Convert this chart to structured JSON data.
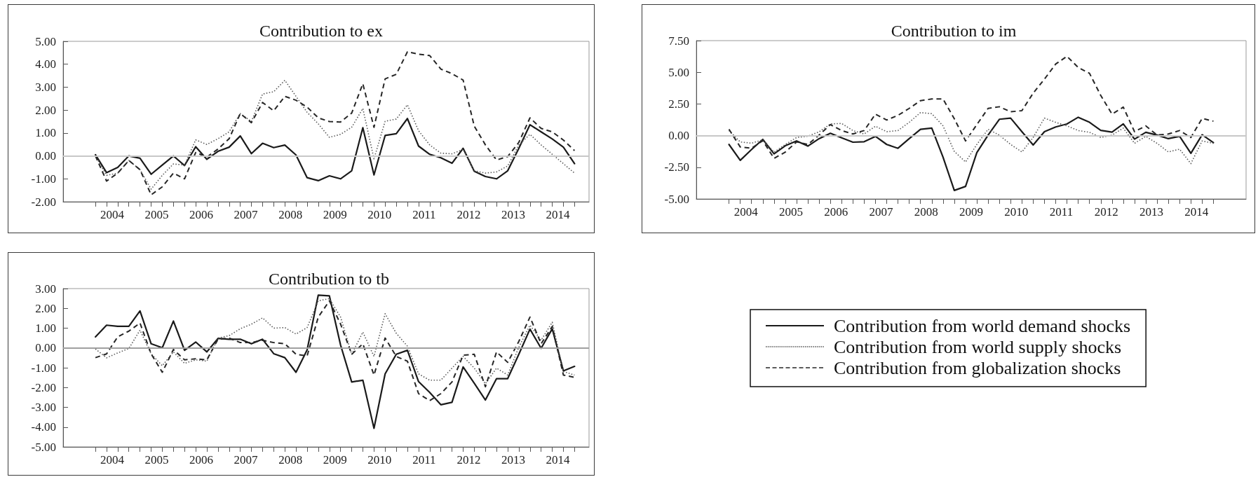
{
  "chart_data": [
    {
      "type": "line",
      "title": "Contribution to ex",
      "x": [
        2003.625,
        2003.875,
        2004.125,
        2004.375,
        2004.625,
        2004.875,
        2005.125,
        2005.375,
        2005.625,
        2005.875,
        2006.125,
        2006.375,
        2006.625,
        2006.875,
        2007.125,
        2007.375,
        2007.625,
        2007.875,
        2008.125,
        2008.375,
        2008.625,
        2008.875,
        2009.125,
        2009.375,
        2009.625,
        2009.875,
        2010.125,
        2010.375,
        2010.625,
        2010.875,
        2011.125,
        2011.375,
        2011.625,
        2011.875,
        2012.125,
        2012.375,
        2012.625,
        2012.875,
        2013.125,
        2013.375,
        2013.625,
        2013.875,
        2014.125,
        2014.375
      ],
      "xlim": [
        2002.9,
        2014.7
      ],
      "xticks": [
        {
          "value": 2003.625,
          "label": null
        },
        {
          "value": 2003.875,
          "label": null
        },
        2004,
        {
          "value": 2004.125,
          "label": null
        },
        {
          "value": 2004.375,
          "label": null
        },
        {
          "value": 2004.625,
          "label": null
        },
        {
          "value": 2004.875,
          "label": null
        },
        2005,
        {
          "value": 2005.125,
          "label": null
        },
        {
          "value": 2005.375,
          "label": null
        },
        {
          "value": 2005.625,
          "label": null
        },
        {
          "value": 2005.875,
          "label": null
        },
        2006,
        {
          "value": 2006.125,
          "label": null
        },
        {
          "value": 2006.375,
          "label": null
        },
        {
          "value": 2006.625,
          "label": null
        },
        {
          "value": 2006.875,
          "label": null
        },
        2007,
        {
          "value": 2007.125,
          "label": null
        },
        {
          "value": 2007.375,
          "label": null
        },
        {
          "value": 2007.625,
          "label": null
        },
        {
          "value": 2007.875,
          "label": null
        },
        2008,
        {
          "value": 2008.125,
          "label": null
        },
        {
          "value": 2008.375,
          "label": null
        },
        {
          "value": 2008.625,
          "label": null
        },
        {
          "value": 2008.875,
          "label": null
        },
        2009,
        {
          "value": 2009.125,
          "label": null
        },
        {
          "value": 2009.375,
          "label": null
        },
        {
          "value": 2009.625,
          "label": null
        },
        {
          "value": 2009.875,
          "label": null
        },
        2010,
        {
          "value": 2010.125,
          "label": null
        },
        {
          "value": 2010.375,
          "label": null
        },
        {
          "value": 2010.625,
          "label": null
        },
        {
          "value": 2010.875,
          "label": null
        },
        2011,
        {
          "value": 2011.125,
          "label": null
        },
        {
          "value": 2011.375,
          "label": null
        },
        {
          "value": 2011.625,
          "label": null
        },
        {
          "value": 2011.875,
          "label": null
        },
        2012,
        {
          "value": 2012.125,
          "label": null
        },
        {
          "value": 2012.375,
          "label": null
        },
        {
          "value": 2012.625,
          "label": null
        },
        {
          "value": 2012.875,
          "label": null
        },
        2013,
        {
          "value": 2013.125,
          "label": null
        },
        {
          "value": 2013.375,
          "label": null
        },
        {
          "value": 2013.625,
          "label": null
        },
        {
          "value": 2013.875,
          "label": null
        },
        2014,
        {
          "value": 2014.125,
          "label": null
        },
        {
          "value": 2014.375,
          "label": null
        }
      ],
      "ylim": [
        -2,
        5
      ],
      "yticks": [
        {
          "value": -2,
          "label": "-2.00"
        },
        {
          "value": -1,
          "label": "-1.00"
        },
        {
          "value": 0,
          "label": "0.00"
        },
        {
          "value": 1,
          "label": "1.00"
        },
        {
          "value": 2,
          "label": "2.00"
        },
        {
          "value": 3,
          "label": "3.00"
        },
        {
          "value": 4,
          "label": "4.00"
        },
        {
          "value": 5,
          "label": "5.00"
        }
      ],
      "ref_lines": [
        {
          "axis": "y",
          "value": 0,
          "color": "#c8c8c8"
        }
      ],
      "series": [
        {
          "color": "#1a1a1a",
          "line_style": "solid",
          "values": [
            0.05,
            -0.73,
            -0.5,
            0.0,
            -0.1,
            -0.8,
            -0.4,
            0.0,
            -0.42,
            0.4,
            -0.15,
            0.2,
            0.38,
            0.87,
            0.1,
            0.55,
            0.36,
            0.47,
            0.04,
            -0.95,
            -1.08,
            -0.87,
            -1.0,
            -0.65,
            1.23,
            -0.83,
            0.89,
            0.97,
            1.63,
            0.43,
            0.07,
            -0.08,
            -0.32,
            0.33,
            -0.67,
            -0.9,
            -1.0,
            -0.65,
            0.33,
            1.36,
            1.05,
            0.74,
            0.38,
            -0.34
          ]
        },
        {
          "color": "#595959",
          "line_style": "dotted",
          "values": [
            0.0,
            -0.85,
            -0.75,
            -0.2,
            -0.6,
            -1.45,
            -0.85,
            -0.35,
            -0.4,
            0.7,
            0.5,
            0.75,
            1.05,
            1.85,
            1.5,
            2.7,
            2.8,
            3.3,
            2.6,
            1.9,
            1.4,
            0.81,
            0.94,
            1.25,
            2.07,
            -0.13,
            1.51,
            1.61,
            2.23,
            1.1,
            0.48,
            0.12,
            0.09,
            0.28,
            -0.65,
            -0.75,
            -0.7,
            -0.44,
            0.48,
            0.94,
            0.48,
            0.07,
            -0.34,
            -0.75
          ]
        },
        {
          "color": "#262626",
          "line_style": "dashed",
          "values": [
            0.0,
            -1.1,
            -0.75,
            -0.2,
            -0.6,
            -1.7,
            -1.35,
            -0.75,
            -1.0,
            0.15,
            -0.05,
            0.3,
            0.75,
            1.85,
            1.45,
            2.33,
            1.97,
            2.6,
            2.43,
            2.13,
            1.66,
            1.5,
            1.48,
            1.87,
            3.15,
            1.25,
            3.36,
            3.56,
            4.54,
            4.44,
            4.38,
            3.79,
            3.59,
            3.31,
            1.3,
            0.48,
            -0.18,
            -0.03,
            0.59,
            1.66,
            1.2,
            1.05,
            0.69,
            0.23
          ]
        }
      ]
    },
    {
      "type": "line",
      "title": "Contribution to im",
      "x": [
        2003.625,
        2003.875,
        2004.125,
        2004.375,
        2004.625,
        2004.875,
        2005.125,
        2005.375,
        2005.625,
        2005.875,
        2006.125,
        2006.375,
        2006.625,
        2006.875,
        2007.125,
        2007.375,
        2007.625,
        2007.875,
        2008.125,
        2008.375,
        2008.625,
        2008.875,
        2009.125,
        2009.375,
        2009.625,
        2009.875,
        2010.125,
        2010.375,
        2010.625,
        2010.875,
        2011.125,
        2011.375,
        2011.625,
        2011.875,
        2012.125,
        2012.375,
        2012.625,
        2012.875,
        2013.125,
        2013.375,
        2013.625,
        2013.875,
        2014.125,
        2014.375
      ],
      "xlim": [
        2002.9,
        2015.1
      ],
      "xticks": [
        {
          "value": 2003.625,
          "label": null
        },
        {
          "value": 2003.875,
          "label": null
        },
        2004,
        {
          "value": 2004.125,
          "label": null
        },
        {
          "value": 2004.375,
          "label": null
        },
        {
          "value": 2004.625,
          "label": null
        },
        {
          "value": 2004.875,
          "label": null
        },
        2005,
        {
          "value": 2005.125,
          "label": null
        },
        {
          "value": 2005.375,
          "label": null
        },
        {
          "value": 2005.625,
          "label": null
        },
        {
          "value": 2005.875,
          "label": null
        },
        2006,
        {
          "value": 2006.125,
          "label": null
        },
        {
          "value": 2006.375,
          "label": null
        },
        {
          "value": 2006.625,
          "label": null
        },
        {
          "value": 2006.875,
          "label": null
        },
        2007,
        {
          "value": 2007.125,
          "label": null
        },
        {
          "value": 2007.375,
          "label": null
        },
        {
          "value": 2007.625,
          "label": null
        },
        {
          "value": 2007.875,
          "label": null
        },
        2008,
        {
          "value": 2008.125,
          "label": null
        },
        {
          "value": 2008.375,
          "label": null
        },
        {
          "value": 2008.625,
          "label": null
        },
        {
          "value": 2008.875,
          "label": null
        },
        2009,
        {
          "value": 2009.125,
          "label": null
        },
        {
          "value": 2009.375,
          "label": null
        },
        {
          "value": 2009.625,
          "label": null
        },
        {
          "value": 2009.875,
          "label": null
        },
        2010,
        {
          "value": 2010.125,
          "label": null
        },
        {
          "value": 2010.375,
          "label": null
        },
        {
          "value": 2010.625,
          "label": null
        },
        {
          "value": 2010.875,
          "label": null
        },
        2011,
        {
          "value": 2011.125,
          "label": null
        },
        {
          "value": 2011.375,
          "label": null
        },
        {
          "value": 2011.625,
          "label": null
        },
        {
          "value": 2011.875,
          "label": null
        },
        2012,
        {
          "value": 2012.125,
          "label": null
        },
        {
          "value": 2012.375,
          "label": null
        },
        {
          "value": 2012.625,
          "label": null
        },
        {
          "value": 2012.875,
          "label": null
        },
        2013,
        {
          "value": 2013.125,
          "label": null
        },
        {
          "value": 2013.375,
          "label": null
        },
        {
          "value": 2013.625,
          "label": null
        },
        {
          "value": 2013.875,
          "label": null
        },
        2014,
        {
          "value": 2014.125,
          "label": null
        },
        {
          "value": 2014.375,
          "label": null
        }
      ],
      "ylim": [
        -5,
        7.5
      ],
      "yticks": [
        {
          "value": -5,
          "label": "-5.00"
        },
        {
          "value": -2.5,
          "label": "-2.50"
        },
        {
          "value": 0,
          "label": "0.00"
        },
        {
          "value": 2.5,
          "label": "2.50"
        },
        {
          "value": 5,
          "label": "5.00"
        },
        {
          "value": 7.5,
          "label": "7.50"
        }
      ],
      "ref_lines": [
        {
          "axis": "y",
          "value": 0,
          "color": "#c8c8c8"
        }
      ],
      "series": [
        {
          "color": "#1a1a1a",
          "line_style": "solid",
          "values": [
            -0.7,
            -1.95,
            -1.1,
            -0.3,
            -1.44,
            -0.8,
            -0.42,
            -0.83,
            -0.24,
            0.18,
            -0.18,
            -0.52,
            -0.48,
            -0.06,
            -0.7,
            -1.0,
            -0.24,
            0.5,
            0.59,
            -1.7,
            -4.33,
            -4.01,
            -1.34,
            0.04,
            1.29,
            1.38,
            0.31,
            -0.74,
            0.31,
            0.68,
            0.92,
            1.45,
            1.05,
            0.41,
            0.28,
            0.92,
            -0.28,
            0.26,
            0.04,
            -0.24,
            -0.06,
            -1.4,
            0.07,
            -0.55
          ]
        },
        {
          "color": "#595959",
          "line_style": "dotted",
          "values": [
            0.4,
            -0.5,
            -0.6,
            -0.33,
            -1.3,
            -0.7,
            -0.15,
            -0.05,
            0.3,
            0.92,
            0.96,
            0.4,
            0.13,
            0.74,
            0.31,
            0.4,
            1.05,
            1.82,
            1.73,
            0.77,
            -1.25,
            -2.08,
            -0.7,
            0.5,
            0.04,
            -0.7,
            -1.29,
            -0.15,
            1.38,
            1.05,
            0.77,
            0.4,
            0.26,
            -0.15,
            0.04,
            0.59,
            -0.61,
            -0.06,
            -0.61,
            -1.29,
            -1.07,
            -2.21,
            -0.42,
            -0.61
          ]
        },
        {
          "color": "#262626",
          "line_style": "dashed",
          "values": [
            0.5,
            -0.9,
            -1.0,
            -0.4,
            -1.8,
            -1.3,
            -0.5,
            -0.7,
            0.04,
            0.87,
            0.4,
            0.13,
            0.4,
            1.7,
            1.23,
            1.6,
            2.15,
            2.76,
            2.89,
            2.89,
            1.33,
            -0.42,
            0.87,
            2.15,
            2.28,
            1.88,
            1.97,
            3.35,
            4.46,
            5.65,
            6.26,
            5.38,
            4.92,
            3.17,
            1.69,
            2.25,
            0.31,
            0.77,
            0.04,
            0.13,
            0.4,
            -0.15,
            1.36,
            1.14
          ]
        }
      ]
    },
    {
      "type": "line",
      "title": "Contribution to tb",
      "legend": "right",
      "x": [
        2003.625,
        2003.875,
        2004.125,
        2004.375,
        2004.625,
        2004.875,
        2005.125,
        2005.375,
        2005.625,
        2005.875,
        2006.125,
        2006.375,
        2006.625,
        2006.875,
        2007.125,
        2007.375,
        2007.625,
        2007.875,
        2008.125,
        2008.375,
        2008.625,
        2008.875,
        2009.125,
        2009.375,
        2009.625,
        2009.875,
        2010.125,
        2010.375,
        2010.625,
        2010.875,
        2011.125,
        2011.375,
        2011.625,
        2011.875,
        2012.125,
        2012.375,
        2012.625,
        2012.875,
        2013.125,
        2013.375,
        2013.625,
        2013.875,
        2014.125,
        2014.375
      ],
      "xlim": [
        2002.9,
        2014.7
      ],
      "xticks": [
        {
          "value": 2003.625,
          "label": null
        },
        {
          "value": 2003.875,
          "label": null
        },
        2004,
        {
          "value": 2004.125,
          "label": null
        },
        {
          "value": 2004.375,
          "label": null
        },
        {
          "value": 2004.625,
          "label": null
        },
        {
          "value": 2004.875,
          "label": null
        },
        2005,
        {
          "value": 2005.125,
          "label": null
        },
        {
          "value": 2005.375,
          "label": null
        },
        {
          "value": 2005.625,
          "label": null
        },
        {
          "value": 2005.875,
          "label": null
        },
        2006,
        {
          "value": 2006.125,
          "label": null
        },
        {
          "value": 2006.375,
          "label": null
        },
        {
          "value": 2006.625,
          "label": null
        },
        {
          "value": 2006.875,
          "label": null
        },
        2007,
        {
          "value": 2007.125,
          "label": null
        },
        {
          "value": 2007.375,
          "label": null
        },
        {
          "value": 2007.625,
          "label": null
        },
        {
          "value": 2007.875,
          "label": null
        },
        2008,
        {
          "value": 2008.125,
          "label": null
        },
        {
          "value": 2008.375,
          "label": null
        },
        {
          "value": 2008.625,
          "label": null
        },
        {
          "value": 2008.875,
          "label": null
        },
        2009,
        {
          "value": 2009.125,
          "label": null
        },
        {
          "value": 2009.375,
          "label": null
        },
        {
          "value": 2009.625,
          "label": null
        },
        {
          "value": 2009.875,
          "label": null
        },
        2010,
        {
          "value": 2010.125,
          "label": null
        },
        {
          "value": 2010.375,
          "label": null
        },
        {
          "value": 2010.625,
          "label": null
        },
        {
          "value": 2010.875,
          "label": null
        },
        2011,
        {
          "value": 2011.125,
          "label": null
        },
        {
          "value": 2011.375,
          "label": null
        },
        {
          "value": 2011.625,
          "label": null
        },
        {
          "value": 2011.875,
          "label": null
        },
        2012,
        {
          "value": 2012.125,
          "label": null
        },
        {
          "value": 2012.375,
          "label": null
        },
        {
          "value": 2012.625,
          "label": null
        },
        {
          "value": 2012.875,
          "label": null
        },
        2013,
        {
          "value": 2013.125,
          "label": null
        },
        {
          "value": 2013.375,
          "label": null
        },
        {
          "value": 2013.625,
          "label": null
        },
        {
          "value": 2013.875,
          "label": null
        },
        2014,
        {
          "value": 2014.125,
          "label": null
        },
        {
          "value": 2014.375,
          "label": null
        }
      ],
      "ylim": [
        -5,
        3
      ],
      "yticks": [
        {
          "value": -5,
          "label": "-5.00"
        },
        {
          "value": -4,
          "label": "-4.00"
        },
        {
          "value": -3,
          "label": "-3.00"
        },
        {
          "value": -2,
          "label": "-2.00"
        },
        {
          "value": -1,
          "label": "-1.00"
        },
        {
          "value": 0,
          "label": "0.00"
        },
        {
          "value": 1,
          "label": "1.00"
        },
        {
          "value": 2,
          "label": "2.00"
        },
        {
          "value": 3,
          "label": "3.00"
        }
      ],
      "ref_lines": [
        {
          "axis": "y",
          "value": 0,
          "color": "#a0a0a0"
        }
      ],
      "series": [
        {
          "name": "Contribution from world demand shocks",
          "color": "#1a1a1a",
          "line_style": "solid",
          "values": [
            0.56,
            1.15,
            1.09,
            1.09,
            1.87,
            0.21,
            0.01,
            1.36,
            -0.12,
            0.3,
            -0.2,
            0.48,
            0.44,
            0.44,
            0.21,
            0.44,
            -0.29,
            -0.49,
            -1.23,
            -0.1,
            2.67,
            2.63,
            0.15,
            -1.72,
            -1.63,
            -4.06,
            -1.31,
            -0.32,
            -0.12,
            -1.7,
            -2.25,
            -2.87,
            -2.75,
            -0.96,
            -1.78,
            -2.63,
            -1.55,
            -1.55,
            -0.32,
            0.95,
            -0.02,
            0.97,
            -1.16,
            -0.93
          ]
        },
        {
          "name": "Contribution from world supply shocks",
          "color": "#595959",
          "line_style": "dotted",
          "values": [
            -0.05,
            -0.5,
            -0.25,
            -0.03,
            0.9,
            -0.3,
            -0.9,
            -0.2,
            -0.78,
            -0.6,
            -0.67,
            0.5,
            0.62,
            0.97,
            1.2,
            1.52,
            1.0,
            1.03,
            0.7,
            1.03,
            2.38,
            2.49,
            1.56,
            -0.32,
            0.8,
            -0.43,
            1.73,
            0.74,
            0.09,
            -1.31,
            -1.63,
            -1.63,
            -1.02,
            -0.43,
            -1.02,
            -1.81,
            -1.02,
            -1.37,
            0.04,
            1.15,
            0.39,
            1.3,
            -1.19,
            -1.37
          ]
        },
        {
          "name": "Contribution from globalization shocks",
          "color": "#262626",
          "line_style": "dashed",
          "values": [
            -0.49,
            -0.3,
            0.56,
            0.85,
            1.26,
            -0.3,
            -1.23,
            -0.08,
            -0.6,
            -0.55,
            -0.6,
            0.44,
            0.5,
            0.27,
            0.27,
            0.39,
            0.27,
            0.21,
            -0.32,
            -0.4,
            1.56,
            2.38,
            1.21,
            -0.32,
            0.21,
            -1.37,
            0.5,
            -0.43,
            -0.67,
            -2.31,
            -2.66,
            -2.31,
            -1.72,
            -0.37,
            -0.32,
            -1.96,
            -0.2,
            -0.73,
            0.33,
            1.56,
            0.21,
            1.09,
            -1.37,
            -1.49
          ]
        }
      ]
    }
  ]
}
